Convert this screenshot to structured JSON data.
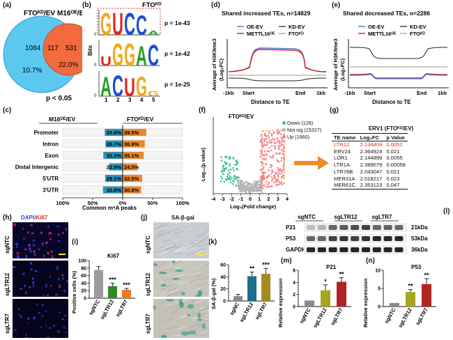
{
  "panels": {
    "a": "(a)",
    "b": "(b)",
    "c": "(c)",
    "d": "(d)",
    "e": "(e)",
    "f": "(f)",
    "g": "(g)",
    "h": "(h)",
    "i": "(i)",
    "j": "(j)",
    "k": "(k)",
    "l": "(l)",
    "m": "(m)",
    "n": "(n)"
  },
  "venn": {
    "left_title": "FTOᴷᴰ/EV",
    "right_title": "M16ᴼᴱ/EV",
    "left_only": "1084",
    "overlap": "117",
    "right_only": "531",
    "left_pct": "10.7%",
    "right_pct": "22.0%",
    "pvalue": "p < 0.05",
    "colors": {
      "left": "#5cc8f0",
      "right": "#f26a3d"
    }
  },
  "motifs": {
    "title": "FTOᴷᴰ",
    "ylabel": "Bits",
    "rows": [
      {
        "letters": [
          "G",
          "U",
          "C",
          "C",
          "A"
        ],
        "p": "p = 1e-43"
      },
      {
        "letters": [
          "U",
          "G",
          "G",
          "A",
          "C"
        ],
        "p": "p = 1e-42"
      },
      {
        "letters": [
          "A",
          "C",
          "U",
          "G",
          "G"
        ],
        "p": "p = 1e-25"
      }
    ],
    "positions": [
      "1",
      "2",
      "3",
      "4",
      "5"
    ],
    "y_ticks": [
      "0",
      "1",
      "2"
    ]
  },
  "profile_increased": {
    "title": "Shared increased TEs, n=14829",
    "ylabel": "Average of H3K9me3",
    "ylabel2": "(Log₂FC)",
    "xlabel": "Distance to TE",
    "xticks": [
      "-1kb",
      "Start",
      "End",
      "1kb"
    ],
    "legend": [
      "OE-EV",
      "KD-EV",
      "METTL16ᴼᴱ",
      "FTOᴷᴰ"
    ]
  },
  "profile_decreased": {
    "title": "Shared decreased TEs, n=2286",
    "ylabel": "Average of H3K9me3",
    "ylabel2": "(Log₂FC)",
    "xlabel": "Distance to TE",
    "xticks": [
      "-1kb",
      "Start",
      "End",
      "1kb"
    ],
    "legend": [
      "OE-EV",
      "KD-EV",
      "METTL16ᴼᴱ",
      "FTOᴷᴰ"
    ]
  },
  "chart_data": [
    {
      "type": "bar",
      "title": "Common m⁶A peaks",
      "left_header": "M16ᴼᴱ/EV",
      "right_header": "FTOᴷᴰ/EV",
      "categories": [
        "Promoter",
        "Intron",
        "Exon",
        "Distal Intergenic",
        "5'UTR",
        "3'UTR"
      ],
      "series": [
        {
          "name": "M16ᴼᴱ/EV",
          "values": [
            29.8,
            28.7,
            32.3,
            22.9,
            29.1,
            32.8
          ],
          "labels": [
            "29.8%",
            "28.7%",
            "32.3%",
            "22.9%",
            "29.1%",
            "32.8%"
          ]
        },
        {
          "name": "FTOᴷᴰ/EV",
          "values": [
            39.5,
            36.9,
            35.1,
            24.5,
            32.5,
            30.8
          ],
          "labels": [
            "39.5%",
            "36.9%",
            "35.1%",
            "24.5%",
            "32.5%",
            "30.8%"
          ]
        }
      ],
      "xticks": [
        "100%",
        "50%",
        "0%",
        "50%",
        "100%"
      ]
    },
    {
      "type": "scatter",
      "title": "FTOᴷᴰ/EV",
      "xlabel": "Log₂(Fold change)",
      "ylabel": "-Log₁₀(p value)",
      "xticks": [
        "-4",
        "-3",
        "-2",
        "-1",
        "0",
        "1",
        "2",
        "3",
        "4"
      ],
      "xlim": [
        -4,
        4
      ],
      "legend": [
        "Down (128)",
        "Not sig (15327)",
        "Up (1660)"
      ],
      "colors": {
        "down": "#3cc08a",
        "notsig": "#b5b5b5",
        "up": "#f4828c"
      }
    },
    {
      "type": "table",
      "title": "ERV1 (FTOᴷᴰ/EV)",
      "columns": [
        "TE name",
        "Log₂FC",
        "p Value"
      ],
      "rows": [
        [
          "LTR12",
          "2.134409",
          "0.0052"
        ],
        [
          "ERV24",
          "2.364924",
          "0.021"
        ],
        [
          "LOR1",
          "2.144899",
          "0.0055"
        ],
        [
          "LTR1A",
          "2.389079",
          "0.00058"
        ],
        [
          "LTR78B",
          "2.043047",
          "0.021"
        ],
        [
          "MER31A",
          "2.018217",
          "0.023"
        ],
        [
          "MER61C",
          "2.353123",
          "0.047"
        ]
      ]
    },
    {
      "type": "bar",
      "title": "Ki67",
      "ylabel": "Positive cells (%)",
      "categories": [
        "sgNTC",
        "sgLTR12",
        "sgLTR7"
      ],
      "values": [
        75,
        32,
        22
      ],
      "errors": [
        9,
        8,
        4
      ],
      "ylim": [
        0,
        100
      ],
      "yticks": [
        "0",
        "20",
        "40",
        "60",
        "80",
        "100"
      ],
      "sig": [
        "",
        "***",
        "***"
      ],
      "colors": [
        "#9a9a9a",
        "#2f8a24",
        "#f07a20"
      ]
    },
    {
      "type": "bar",
      "ylabel": "SA-β-gal (%)",
      "categories": [
        "sgNC",
        "sgLTR12",
        "sgLTR7"
      ],
      "values": [
        8,
        41,
        45
      ],
      "errors": [
        3,
        7,
        9
      ],
      "ylim": [
        0,
        60
      ],
      "yticks": [
        "0",
        "20",
        "40",
        "60"
      ],
      "sig": [
        "",
        "**",
        "***"
      ],
      "colors": [
        "#8a8a8a",
        "#1e6e8e",
        "#a68a1e"
      ]
    },
    {
      "type": "bar",
      "title": "P21",
      "ylabel": "Relative expression",
      "categories": [
        "sgNTC",
        "sgLTR12",
        "sgLTR7"
      ],
      "values": [
        1.0,
        2.7,
        4.1
      ],
      "errors": [
        0,
        0.9,
        0.7
      ],
      "ylim": [
        0,
        6
      ],
      "yticks": [
        "0",
        "2",
        "4",
        "6"
      ],
      "sig": [
        "",
        "*",
        "**"
      ],
      "colors": [
        "#8a8a8a",
        "#a8a420",
        "#b02424"
      ]
    },
    {
      "type": "bar",
      "title": "P53",
      "ylabel": "Relative expression",
      "categories": [
        "sgNTC",
        "sgLTR12",
        "sgLTR7"
      ],
      "values": [
        1.0,
        4.0,
        6.2
      ],
      "errors": [
        0,
        0.7,
        1.5
      ],
      "ylim": [
        0,
        10
      ],
      "yticks": [
        "0",
        "5",
        "10"
      ],
      "sig": [
        "",
        "**",
        "**"
      ],
      "colors": [
        "#8a8a8a",
        "#a8a420",
        "#b02424"
      ]
    }
  ],
  "micro_h": {
    "stain": "DAPI/",
    "stain2": "Ki67",
    "rows": [
      "sgNTC",
      "sgLTR12",
      "sgLTR7"
    ]
  },
  "micro_j": {
    "title": "SA-β-gal",
    "rows": [
      "sgNTC",
      "sgLTR12",
      "sgLTR7"
    ]
  },
  "western": {
    "lanes": [
      "sgNTC",
      "sgLTR12",
      "sgLTR7"
    ],
    "bands": [
      "P21",
      "P53",
      "GAPDH"
    ],
    "sizes": [
      "21kDa",
      "53kDa",
      "36kDa"
    ]
  }
}
